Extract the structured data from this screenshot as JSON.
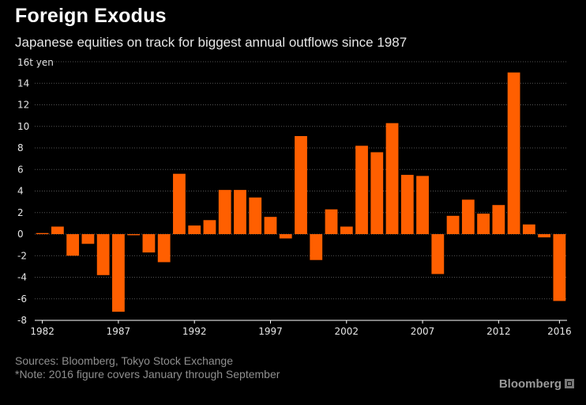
{
  "header": {
    "title": "Foreign Exodus",
    "subtitle": "Japanese equities on track for biggest annual outflows since 1987",
    "unit_label": "16t yen"
  },
  "footer": {
    "source": "Sources: Bloomberg, Tokyo Stock Exchange",
    "note": "*Note: 2016 figure covers January through September",
    "logo": "Bloomberg"
  },
  "colors": {
    "bar": "#ff5f00",
    "background": "#000000",
    "grid": "#555555"
  },
  "chart_data": {
    "type": "bar",
    "title": "Foreign Exodus",
    "subtitle": "Japanese equities on track for biggest annual outflows since 1987",
    "ylabel": "yen (trillions)",
    "ylim": [
      -8,
      16
    ],
    "yticks": [
      16,
      14,
      12,
      10,
      8,
      6,
      4,
      2,
      0,
      -2,
      -4,
      -6,
      -8
    ],
    "ytick_labels": [
      "16t yen",
      "14",
      "12",
      "10",
      "8",
      "6",
      "4",
      "2",
      "0",
      "-2",
      "-4",
      "-6",
      "-8"
    ],
    "xtick_labels": [
      "1982",
      "1987",
      "1992",
      "1997",
      "2002",
      "2007",
      "2012",
      "2016"
    ],
    "categories": [
      1982,
      1983,
      1984,
      1985,
      1986,
      1987,
      1988,
      1989,
      1990,
      1991,
      1992,
      1993,
      1994,
      1995,
      1996,
      1997,
      1998,
      1999,
      2000,
      2001,
      2002,
      2003,
      2004,
      2005,
      2006,
      2007,
      2008,
      2009,
      2010,
      2011,
      2012,
      2013,
      2014,
      2015,
      2016
    ],
    "values": [
      0.1,
      0.7,
      -2.0,
      -0.9,
      -3.8,
      -7.2,
      -0.1,
      -1.7,
      -2.6,
      5.6,
      0.8,
      1.3,
      4.1,
      4.1,
      3.4,
      1.6,
      -0.4,
      9.1,
      -2.4,
      2.3,
      0.7,
      8.2,
      7.6,
      10.3,
      5.5,
      5.4,
      -3.7,
      1.7,
      3.2,
      1.9,
      2.7,
      15.0,
      0.9,
      -0.3,
      -6.2
    ],
    "grid": true
  }
}
